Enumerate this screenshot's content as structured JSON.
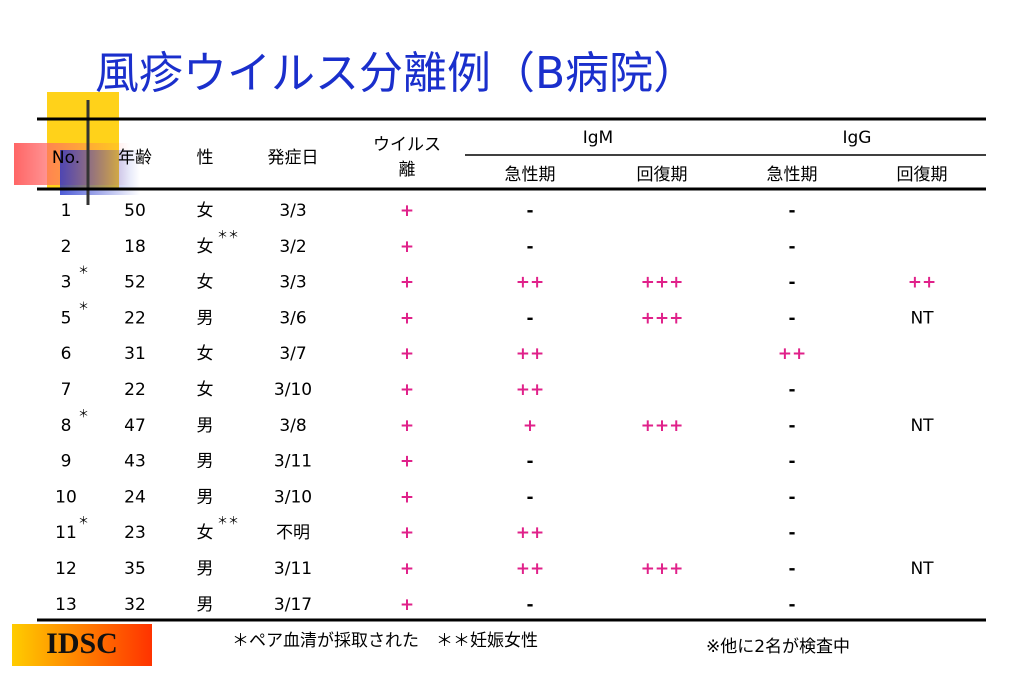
{
  "title": "風疹ウイルス分離例（B病院）",
  "table": {
    "headers": {
      "no": "No.",
      "age": "年齢",
      "sex": "性",
      "onset": "発症日",
      "virus": [
        "ウイルス",
        "離"
      ],
      "igm": "IgM",
      "igg": "IgG",
      "igm_acute": "急性期",
      "igm_recovery": "回復期",
      "igg_acute": "急性期",
      "igg_recovery": "回復期"
    },
    "rows": [
      {
        "no": "1",
        "age": 50,
        "sex": "女",
        "onset": "3/3",
        "virus": "+",
        "igm_acute": "-",
        "igg_acute": "-"
      },
      {
        "no": "2",
        "age": 18,
        "sex": "女",
        "sex_mark": "＊＊",
        "onset": "3/2",
        "virus": "+",
        "igm_acute": "-",
        "igg_acute": "-"
      },
      {
        "no": "3",
        "no_mark": "＊",
        "age": 52,
        "sex": "女",
        "onset": "3/3",
        "virus": "+",
        "igm_acute": "++",
        "igm_recovery": "+++",
        "igg_acute": "-",
        "igg_recovery": "++"
      },
      {
        "no": "5",
        "no_mark": "＊",
        "age": 22,
        "sex": "男",
        "onset": "3/6",
        "virus": "+",
        "igm_acute": "-",
        "igm_recovery": "+++",
        "igg_acute": "-",
        "igg_recovery": "NT"
      },
      {
        "no": "6",
        "age": 31,
        "sex": "女",
        "onset": "3/7",
        "virus": "+",
        "igm_acute": "++",
        "igg_acute": "++"
      },
      {
        "no": "7",
        "age": 22,
        "sex": "女",
        "onset": "3/10",
        "virus": "+",
        "igm_acute": "++",
        "igg_acute": "-"
      },
      {
        "no": "8",
        "no_mark": "＊",
        "age": 47,
        "sex": "男",
        "onset": "3/8",
        "virus": "+",
        "igm_acute": "+",
        "igm_recovery": "+++",
        "igg_acute": "-",
        "igg_recovery": "NT"
      },
      {
        "no": "9",
        "age": 43,
        "sex": "男",
        "onset": "3/11",
        "virus": "+",
        "igm_acute": "-",
        "igg_acute": "-"
      },
      {
        "no": "10",
        "age": 24,
        "sex": "男",
        "onset": "3/10",
        "virus": "+",
        "igm_acute": "-",
        "igg_acute": "-"
      },
      {
        "no": "11",
        "no_mark": "＊",
        "age": 23,
        "sex": "女",
        "sex_mark": "＊＊",
        "onset": "不明",
        "virus": "+",
        "igm_acute": "++",
        "igg_acute": "-"
      },
      {
        "no": "12",
        "age": 35,
        "sex": "男",
        "onset": "3/11",
        "virus": "+",
        "igm_acute": "++",
        "igm_recovery": "+++",
        "igg_acute": "-",
        "igg_recovery": "NT"
      },
      {
        "no": "13",
        "age": 32,
        "sex": "男",
        "onset": "3/17",
        "virus": "+",
        "igm_acute": "-",
        "igg_acute": "-"
      }
    ]
  },
  "footer": {
    "logo": "IDSC",
    "note": "＊ペア血清が採取された　＊＊妊娠女性",
    "note2": "※他に2名が検査中"
  }
}
